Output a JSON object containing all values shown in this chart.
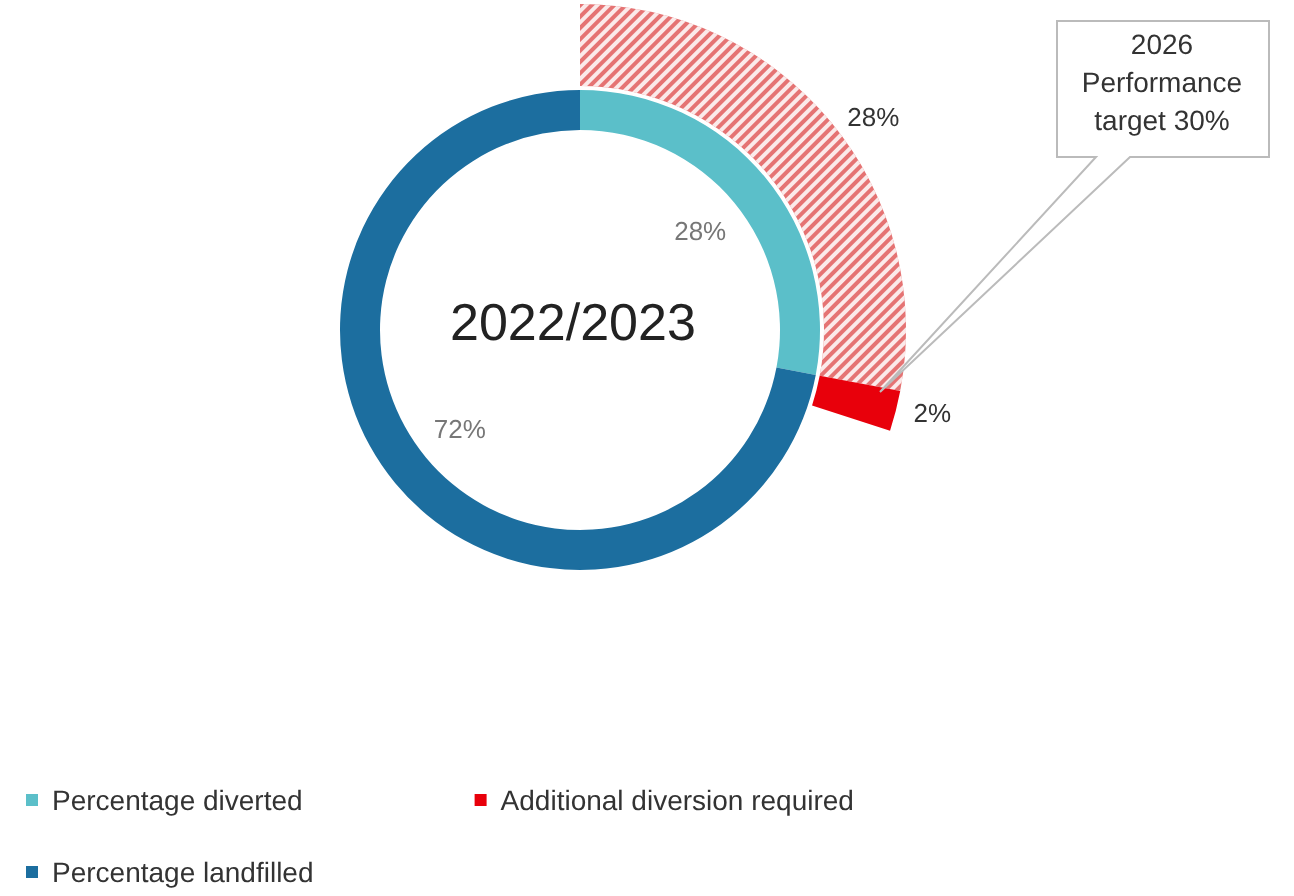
{
  "chart_data": {
    "type": "donut",
    "categories": [
      "Percentage diverted",
      "Additional diversion required",
      "Percentage landfilled"
    ],
    "series": [
      {
        "values": [
          28,
          null,
          72
        ],
        "colors": [
          "#5bbfc9",
          null,
          "#1c6e9f"
        ],
        "value_labels": [
          "28%",
          null,
          "72%"
        ]
      },
      {
        "values": [
          28,
          2,
          null
        ],
        "colors": [
          "#e57373",
          "#e8000b",
          null
        ],
        "value_labels": [
          "28%",
          "2%",
          null
        ]
      }
    ],
    "annotations": [
      "2022/2023",
      "2026\nPerformance\ntarget 30%"
    ],
    "legend": "bottom left"
  }
}
